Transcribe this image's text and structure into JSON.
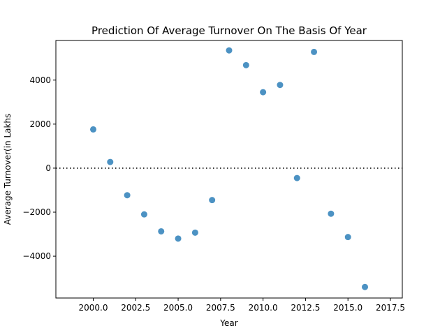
{
  "chart_data": {
    "type": "scatter",
    "title": "Prediction Of Average Turnover On The Basis Of Year",
    "xlabel": "Year",
    "ylabel": "Average Turnover(in Lakhs",
    "xlim": [
      1997.8,
      2018.2
    ],
    "ylim": [
      -5900,
      5800
    ],
    "xticks": [
      2000,
      2002.5,
      2005,
      2007.5,
      2010,
      2012.5,
      2015,
      2017.5
    ],
    "xtick_labels": [
      "2000.0",
      "2002.5",
      "2005.0",
      "2007.5",
      "2010.0",
      "2012.5",
      "2015.0",
      "2017.5"
    ],
    "yticks": [
      -4000,
      -2000,
      0,
      2000,
      4000
    ],
    "ytick_labels": [
      "−4000",
      "−2000",
      "0",
      "2000",
      "4000"
    ],
    "reference_line": {
      "y": 0,
      "style": "dotted",
      "color": "#000000"
    },
    "point_color": "#1f77b4",
    "grid": false,
    "points": [
      {
        "x": 2000,
        "y": 1760
      },
      {
        "x": 2001,
        "y": 280
      },
      {
        "x": 2002,
        "y": -1230
      },
      {
        "x": 2003,
        "y": -2100
      },
      {
        "x": 2004,
        "y": -2870
      },
      {
        "x": 2005,
        "y": -3200
      },
      {
        "x": 2006,
        "y": -2930
      },
      {
        "x": 2007,
        "y": -1450
      },
      {
        "x": 2008,
        "y": 5350
      },
      {
        "x": 2009,
        "y": 4680
      },
      {
        "x": 2010,
        "y": 3450
      },
      {
        "x": 2011,
        "y": 3780
      },
      {
        "x": 2012,
        "y": -450
      },
      {
        "x": 2013,
        "y": 5280
      },
      {
        "x": 2014,
        "y": -2070
      },
      {
        "x": 2015,
        "y": -3130
      },
      {
        "x": 2016,
        "y": -5400
      }
    ]
  }
}
